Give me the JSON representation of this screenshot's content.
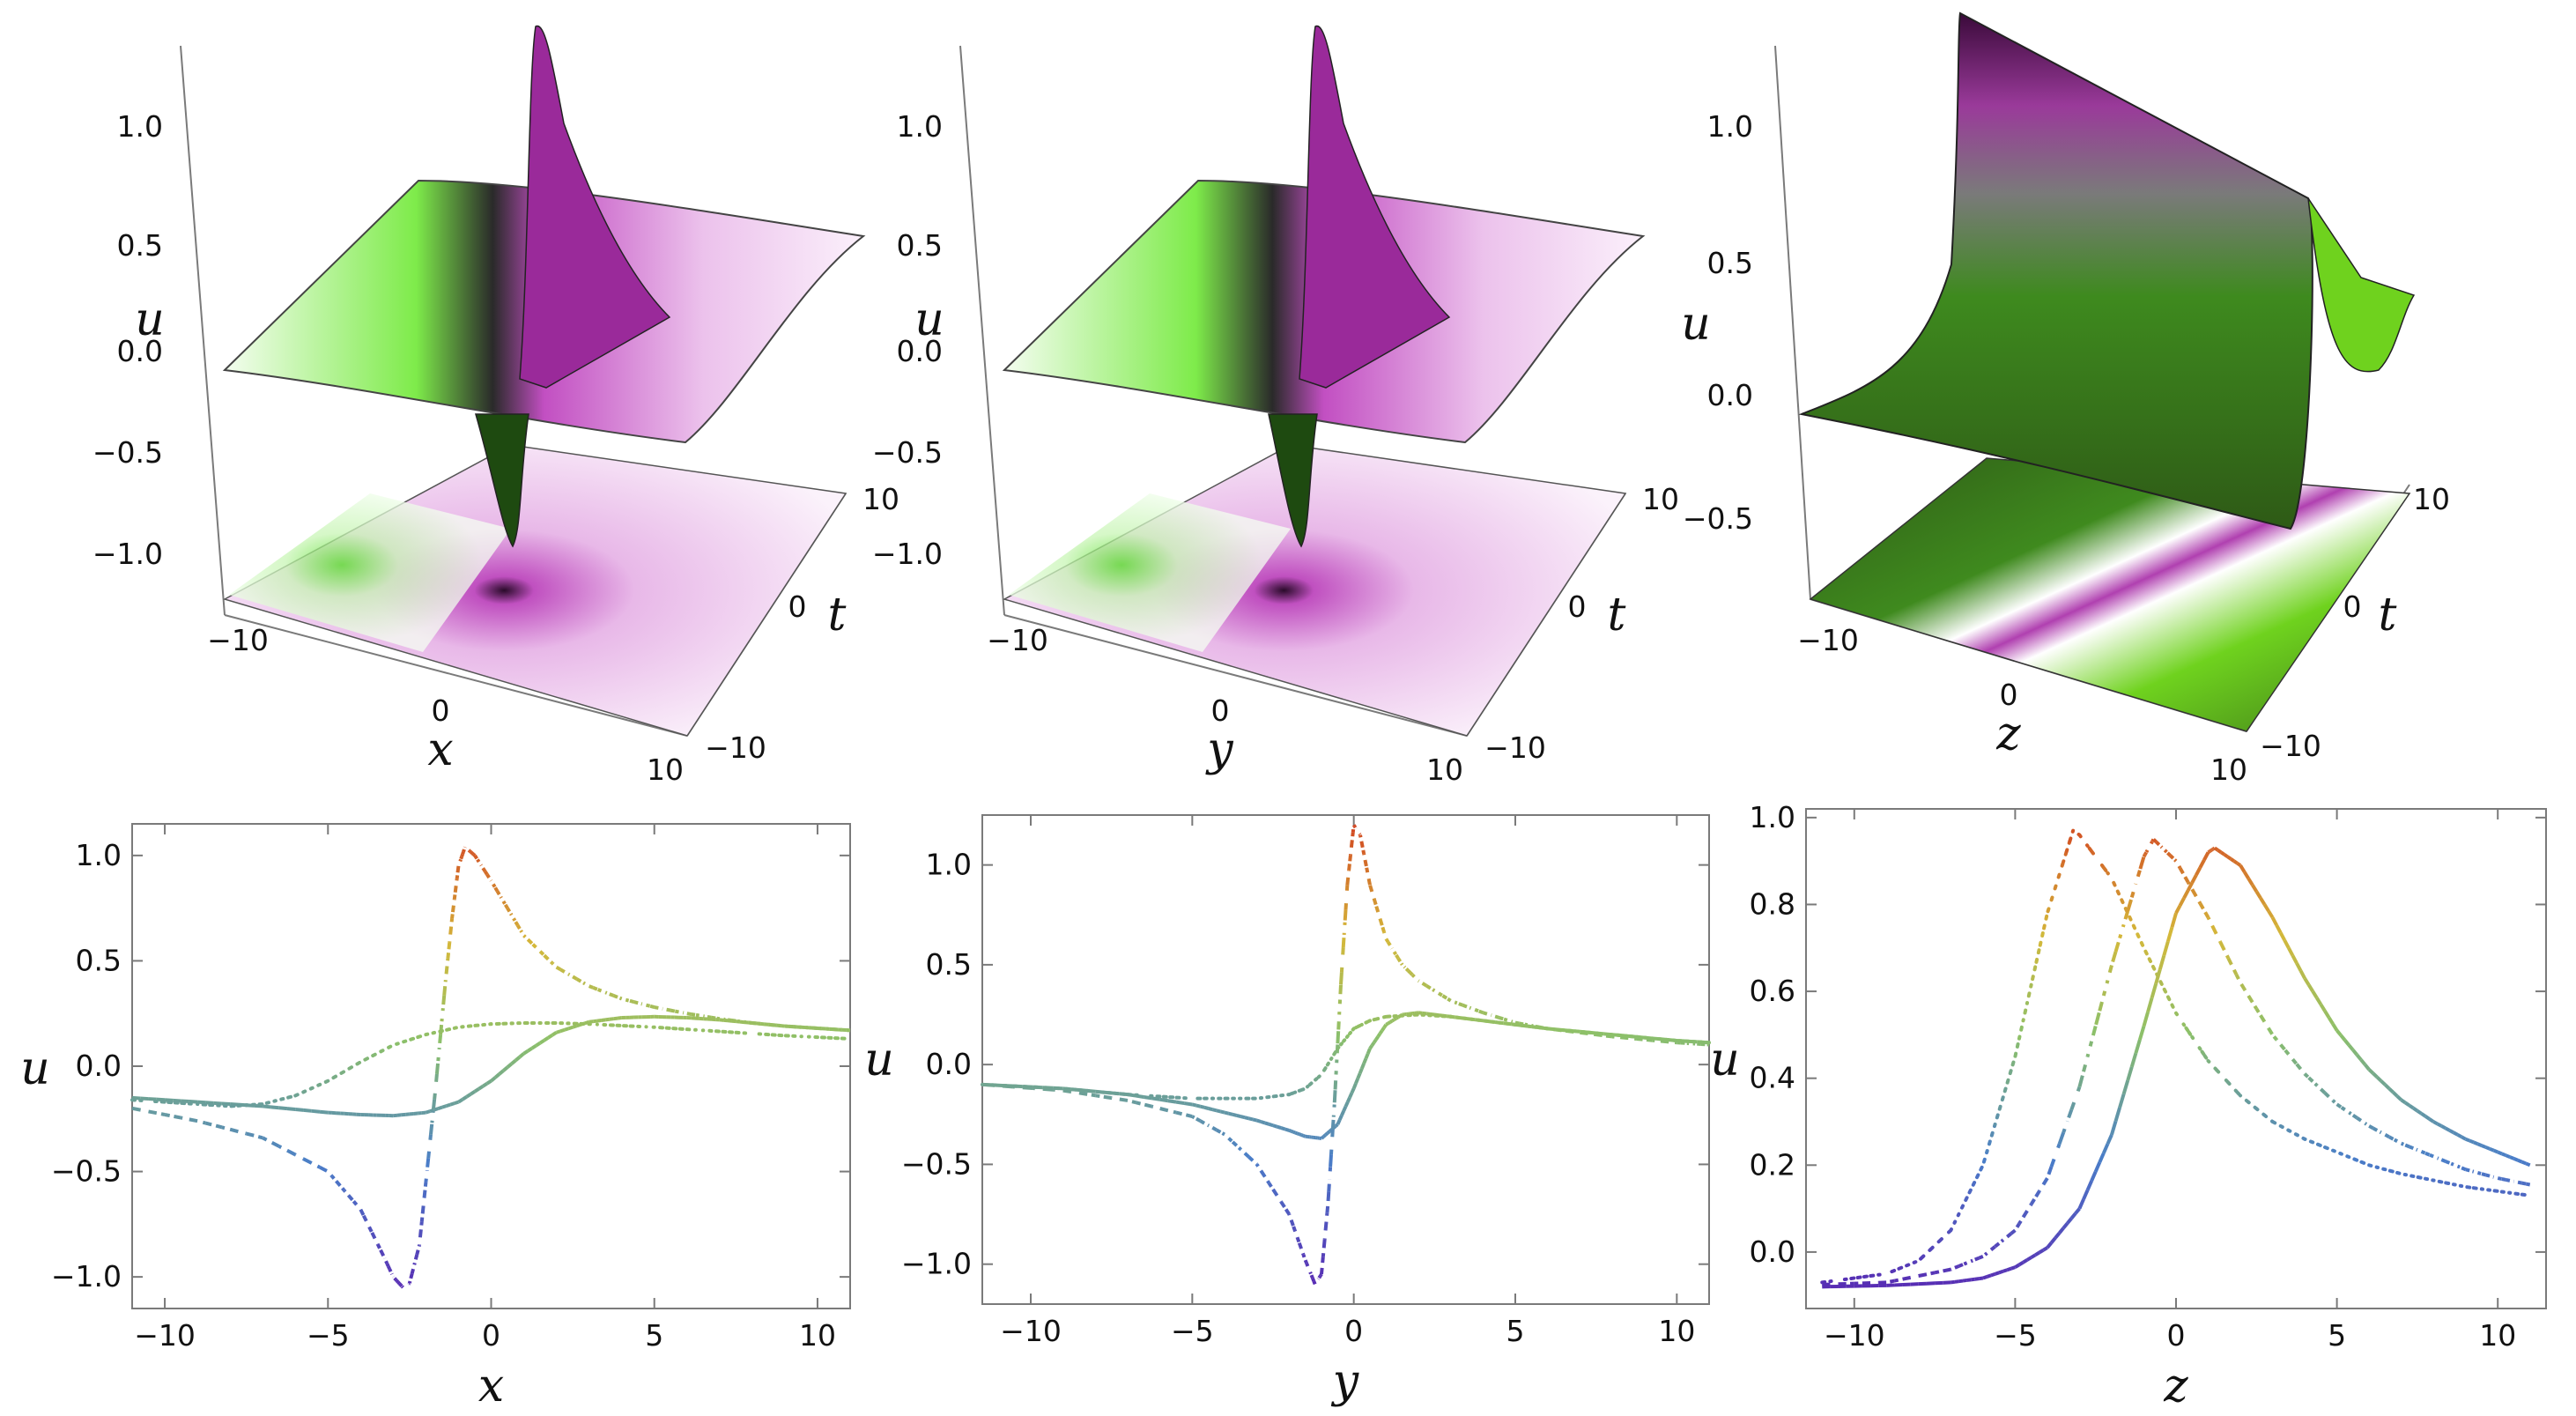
{
  "chart_data": [
    {
      "type": "surface3d",
      "xlabel": "x",
      "ylabel": "t",
      "zlabel": "u",
      "x_ticks": [
        "−10",
        "0",
        "10"
      ],
      "t_ticks": [
        "−10",
        "0",
        "10"
      ],
      "u_ticks": [
        "−1.0",
        "−0.5",
        "0.0",
        "0.5",
        "1.0"
      ],
      "zlim": [
        -1.1,
        1.25
      ],
      "surface": "localized lump: positive peak ~1.2 and negative dip ~-1.1 near origin, with projected contour plane below",
      "colors": {
        "positive": "#d65ad6",
        "negative": "#55e020",
        "mid": "#ffffff"
      }
    },
    {
      "type": "surface3d",
      "xlabel": "y",
      "ylabel": "t",
      "zlabel": "u",
      "x_ticks": [
        "−10",
        "0",
        "10"
      ],
      "t_ticks": [
        "−10",
        "0",
        "10"
      ],
      "u_ticks": [
        "−1.0",
        "−0.5",
        "0.0",
        "0.5",
        "1.0"
      ],
      "zlim": [
        -1.1,
        1.25
      ],
      "surface": "localized lump: positive peak ~1.2 and negative dip ~-1.1 near origin, with projected contour plane below",
      "colors": {
        "positive": "#d65ad6",
        "negative": "#55e020",
        "mid": "#ffffff"
      }
    },
    {
      "type": "surface3d",
      "xlabel": "z",
      "ylabel": "t",
      "zlabel": "u",
      "x_ticks": [
        "−10",
        "0",
        "10"
      ],
      "t_ticks": [
        "−10",
        "0",
        "10"
      ],
      "u_ticks": [
        "−0.5",
        "0.0",
        "0.5",
        "1.0"
      ],
      "zlim": [
        -0.6,
        1.2
      ],
      "surface": "kink-shaped ridge travelling diagonally with peak ~1.0, with projected contour plane below",
      "colors": {
        "positive": "#6a1a6a",
        "negative": "#3d7a1c",
        "mid": "#6fd21e"
      }
    },
    {
      "type": "line",
      "xlabel": "x",
      "ylabel": "u",
      "xlim": [
        -11,
        11
      ],
      "ylim": [
        -1.15,
        1.15
      ],
      "x_ticks": [
        -10,
        -5,
        0,
        5,
        10
      ],
      "x_tick_labels": [
        "−10",
        "−5",
        "0",
        "5",
        "10"
      ],
      "y_ticks": [
        -1.0,
        -0.5,
        0.0,
        0.5,
        1.0
      ],
      "y_tick_labels": [
        "−1.0",
        "−0.5",
        "0.0",
        "0.5",
        "1.0"
      ],
      "series": [
        {
          "style": "solid",
          "x": [
            -11,
            -9,
            -7,
            -5,
            -4,
            -3,
            -2,
            -1,
            0,
            1,
            2,
            3,
            4,
            5,
            6,
            7,
            8,
            9,
            10,
            11
          ],
          "y": [
            -0.15,
            -0.17,
            -0.19,
            -0.22,
            -0.23,
            -0.235,
            -0.22,
            -0.17,
            -0.07,
            0.06,
            0.16,
            0.21,
            0.23,
            0.235,
            0.23,
            0.22,
            0.205,
            0.19,
            0.18,
            0.17
          ]
        },
        {
          "style": "dashed",
          "x": [
            -11,
            -9,
            -7,
            -5,
            -4,
            -3.3,
            -3,
            -2.7,
            -2.5,
            -2.2,
            -2,
            -1.7,
            -1.4,
            -1.2,
            -1,
            -0.8,
            -0.5,
            0,
            0.5,
            1,
            2,
            3,
            4,
            5,
            6,
            7,
            8,
            9,
            10,
            11
          ],
          "y": [
            -0.2,
            -0.26,
            -0.34,
            -0.5,
            -0.68,
            -0.9,
            -1.0,
            -1.05,
            -1.03,
            -0.85,
            -0.55,
            -0.1,
            0.4,
            0.7,
            0.95,
            1.04,
            1.0,
            0.88,
            0.75,
            0.62,
            0.47,
            0.38,
            0.32,
            0.28,
            0.25,
            0.225,
            0.205,
            0.19,
            0.18,
            0.17
          ]
        },
        {
          "style": "dotted",
          "x": [
            -11,
            -9,
            -8,
            -7,
            -6,
            -5,
            -4,
            -3,
            -2,
            -1,
            0,
            1,
            2,
            3,
            5,
            7,
            9,
            11
          ],
          "y": [
            -0.16,
            -0.18,
            -0.19,
            -0.18,
            -0.14,
            -0.07,
            0.02,
            0.1,
            0.15,
            0.185,
            0.2,
            0.205,
            0.205,
            0.2,
            0.185,
            0.165,
            0.145,
            0.13
          ]
        }
      ]
    },
    {
      "type": "line",
      "xlabel": "y",
      "ylabel": "u",
      "xlim": [
        -11.5,
        11
      ],
      "ylim": [
        -1.2,
        1.25
      ],
      "x_ticks": [
        -10,
        -5,
        0,
        5,
        10
      ],
      "x_tick_labels": [
        "−10",
        "−5",
        "0",
        "5",
        "10"
      ],
      "y_ticks": [
        -1.0,
        -0.5,
        0.0,
        0.5,
        1.0
      ],
      "y_tick_labels": [
        "−1.0",
        "−0.5",
        "0.0",
        "0.5",
        "1.0"
      ],
      "series": [
        {
          "style": "solid",
          "x": [
            -11.5,
            -9,
            -7,
            -5,
            -4,
            -3,
            -2,
            -1.5,
            -1,
            -0.5,
            0,
            0.5,
            1,
            1.5,
            2,
            3,
            4,
            5,
            6,
            8,
            10,
            11
          ],
          "y": [
            -0.1,
            -0.12,
            -0.15,
            -0.2,
            -0.24,
            -0.28,
            -0.33,
            -0.36,
            -0.37,
            -0.3,
            -0.12,
            0.08,
            0.2,
            0.25,
            0.26,
            0.24,
            0.22,
            0.2,
            0.18,
            0.15,
            0.12,
            0.11
          ]
        },
        {
          "style": "dashed",
          "x": [
            -11.5,
            -9,
            -7,
            -5,
            -4,
            -3,
            -2,
            -1.5,
            -1.2,
            -1,
            -0.8,
            -0.6,
            -0.4,
            -0.2,
            0,
            0.2,
            0.5,
            1,
            1.5,
            2,
            3,
            4,
            5,
            6,
            8,
            10,
            11
          ],
          "y": [
            -0.1,
            -0.13,
            -0.18,
            -0.26,
            -0.35,
            -0.5,
            -0.75,
            -0.98,
            -1.1,
            -1.05,
            -0.7,
            -0.2,
            0.4,
            0.9,
            1.2,
            1.15,
            0.9,
            0.63,
            0.5,
            0.42,
            0.32,
            0.26,
            0.21,
            0.18,
            0.14,
            0.11,
            0.1
          ]
        },
        {
          "style": "dotted",
          "x": [
            -11.5,
            -9,
            -7,
            -5,
            -4,
            -3,
            -2,
            -1.5,
            -1,
            -0.5,
            0,
            0.5,
            1,
            2,
            3,
            4,
            6,
            8,
            10,
            11
          ],
          "y": [
            -0.1,
            -0.12,
            -0.15,
            -0.17,
            -0.17,
            -0.17,
            -0.15,
            -0.12,
            -0.05,
            0.08,
            0.18,
            0.22,
            0.24,
            0.25,
            0.24,
            0.22,
            0.18,
            0.15,
            0.12,
            0.11
          ]
        }
      ]
    },
    {
      "type": "line",
      "xlabel": "z",
      "ylabel": "u",
      "xlim": [
        -11.5,
        11.5
      ],
      "ylim": [
        -0.13,
        1.02
      ],
      "x_ticks": [
        -10,
        -5,
        0,
        5,
        10
      ],
      "x_tick_labels": [
        "−10",
        "−5",
        "0",
        "5",
        "10"
      ],
      "y_ticks": [
        0.0,
        0.2,
        0.4,
        0.6,
        0.8,
        1.0
      ],
      "y_tick_labels": [
        "0.0",
        "0.2",
        "0.4",
        "0.6",
        "0.8",
        "1.0"
      ],
      "series": [
        {
          "style": "solid",
          "x": [
            -11,
            -9,
            -7,
            -6,
            -5,
            -4,
            -3,
            -2,
            -1,
            0,
            1,
            1.2,
            2,
            3,
            4,
            5,
            6,
            7,
            8,
            9,
            10,
            11
          ],
          "y": [
            -0.08,
            -0.077,
            -0.07,
            -0.06,
            -0.035,
            0.01,
            0.1,
            0.27,
            0.52,
            0.78,
            0.92,
            0.93,
            0.89,
            0.77,
            0.63,
            0.51,
            0.42,
            0.35,
            0.3,
            0.26,
            0.23,
            0.2
          ]
        },
        {
          "style": "dashed",
          "x": [
            -11,
            -9,
            -7,
            -6,
            -5,
            -4,
            -3,
            -2,
            -1,
            -0.7,
            0,
            1,
            2,
            3,
            4,
            5,
            6,
            7,
            8,
            9,
            10,
            11
          ],
          "y": [
            -0.075,
            -0.07,
            -0.04,
            -0.01,
            0.05,
            0.17,
            0.38,
            0.66,
            0.91,
            0.95,
            0.9,
            0.77,
            0.62,
            0.5,
            0.41,
            0.34,
            0.29,
            0.25,
            0.22,
            0.19,
            0.17,
            0.155
          ]
        },
        {
          "style": "dotted",
          "x": [
            -11,
            -9,
            -8,
            -7,
            -6,
            -5,
            -4,
            -3.2,
            -3,
            -2,
            -1,
            0,
            1,
            2,
            3,
            4,
            5,
            6,
            7,
            8,
            9,
            10,
            11
          ],
          "y": [
            -0.07,
            -0.05,
            -0.02,
            0.05,
            0.2,
            0.45,
            0.78,
            0.97,
            0.96,
            0.86,
            0.7,
            0.55,
            0.44,
            0.36,
            0.3,
            0.26,
            0.23,
            0.2,
            0.18,
            0.165,
            0.15,
            0.14,
            0.13
          ]
        }
      ]
    }
  ]
}
